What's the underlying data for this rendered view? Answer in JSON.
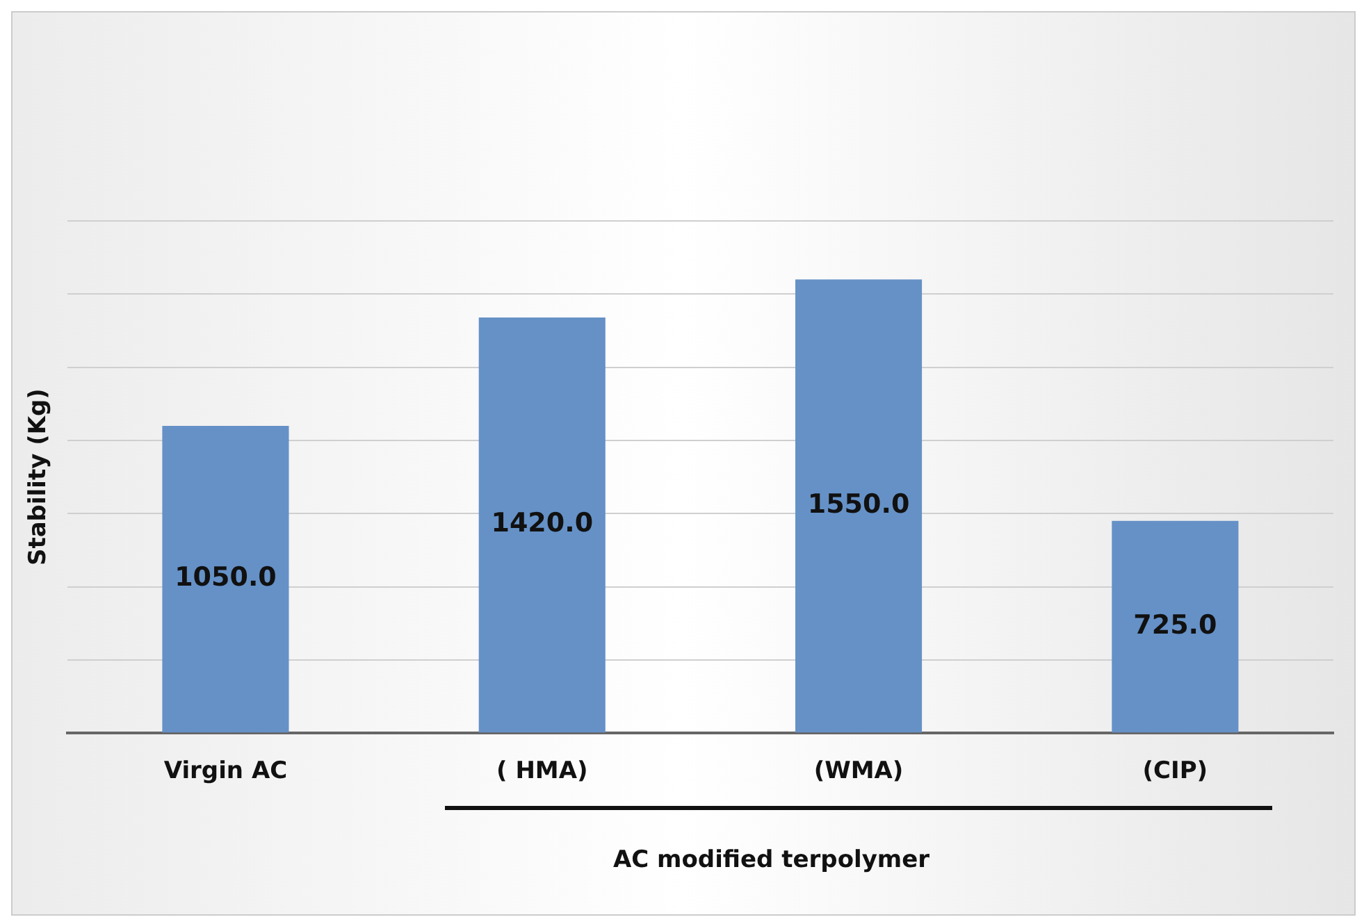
{
  "chart_data": {
    "type": "bar",
    "ylabel": "Stability (Kg)",
    "categories": [
      "Virgin AC",
      "( HMA)",
      "(WMA)",
      "(CIP)"
    ],
    "values": [
      1050.0,
      1420.0,
      1550.0,
      725.0
    ],
    "value_labels": [
      "1050.0",
      "1420.0",
      "1550.0",
      "725.0"
    ],
    "color": "#6591c7",
    "ylim": [
      0,
      1750
    ],
    "yticks": [
      {
        "value": 0,
        "label": null
      },
      {
        "value": 250,
        "label": null
      },
      {
        "value": 500,
        "label": null
      },
      {
        "value": 750,
        "label": null
      },
      {
        "value": 1000,
        "label": null
      },
      {
        "value": 1250,
        "label": null
      },
      {
        "value": 1500,
        "label": null
      },
      {
        "value": 1750,
        "label": null
      }
    ],
    "grid": "y",
    "tick_labels": "x",
    "legend": false,
    "annotations": [
      "AC modified terpolymer"
    ]
  }
}
